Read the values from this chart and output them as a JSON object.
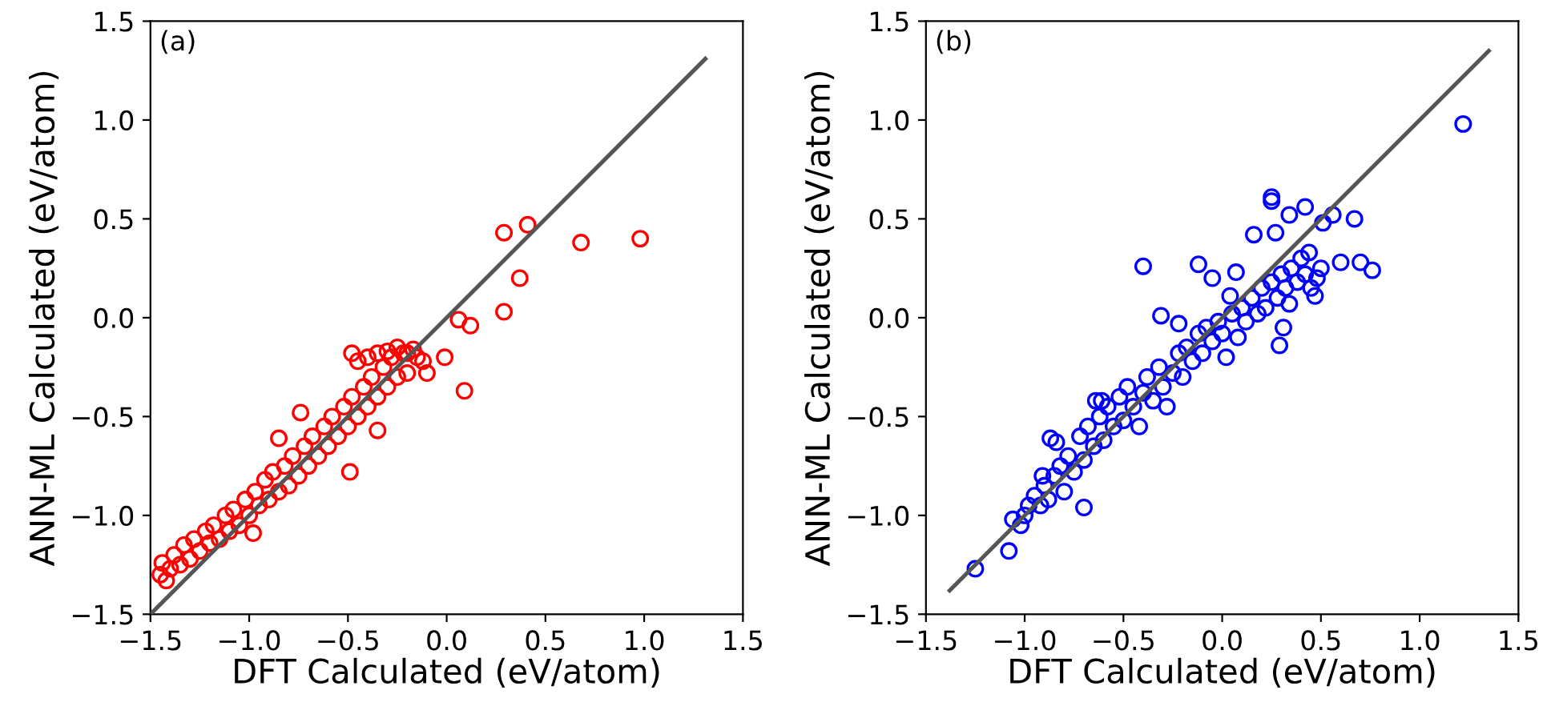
{
  "chart_data": [
    {
      "type": "scatter",
      "xlabel": "DFT Calculated (eV/atom)",
      "ylabel": "ANN-ML Calculated (eV/atom)",
      "xlim": [
        -1.5,
        1.5
      ],
      "ylim": [
        -1.5,
        1.5
      ],
      "xticks": [
        {
          "value": -1.5,
          "label": "−1.5"
        },
        {
          "value": -1.0,
          "label": "−1.0"
        },
        {
          "value": -0.5,
          "label": "−0.5"
        },
        {
          "value": 0.0,
          "label": "0.0"
        },
        {
          "value": 0.5,
          "label": "0.5"
        },
        {
          "value": 1.0,
          "label": "1.0"
        },
        {
          "value": 1.5,
          "label": "1.5"
        }
      ],
      "yticks": [
        {
          "value": -1.5,
          "label": "−1.5"
        },
        {
          "value": -1.0,
          "label": "−1.0"
        },
        {
          "value": -0.5,
          "label": "−0.5"
        },
        {
          "value": 0.0,
          "label": "0.0"
        },
        {
          "value": 0.5,
          "label": "0.5"
        },
        {
          "value": 1.0,
          "label": "1.0"
        },
        {
          "value": 1.5,
          "label": "1.5"
        }
      ],
      "annotations": [
        "(a)"
      ],
      "grid": false,
      "legend": false,
      "series": [
        {
          "marker": "circle",
          "color": "#ff0000",
          "x": [
            -1.45,
            -1.44,
            -1.42,
            -1.4,
            -1.38,
            -1.35,
            -1.33,
            -1.3,
            -1.28,
            -1.25,
            -1.22,
            -1.2,
            -1.18,
            -1.15,
            -1.12,
            -1.1,
            -1.08,
            -1.05,
            -1.02,
            -1.0,
            -0.98,
            -0.97,
            -0.95,
            -0.92,
            -0.9,
            -0.88,
            -0.85,
            -0.85,
            -0.82,
            -0.8,
            -0.78,
            -0.75,
            -0.74,
            -0.72,
            -0.7,
            -0.68,
            -0.65,
            -0.62,
            -0.6,
            -0.58,
            -0.55,
            -0.52,
            -0.5,
            -0.49,
            -0.48,
            -0.45,
            -0.42,
            -0.4,
            -0.38,
            -0.35,
            -0.35,
            -0.32,
            -0.3,
            -0.28,
            -0.25,
            -0.22,
            -0.2,
            -0.17,
            -0.15,
            -0.48,
            -0.45,
            -0.4,
            -0.35,
            -0.3,
            -0.25,
            -0.2,
            -0.12,
            -0.1,
            0.29,
            0.41,
            0.68,
            0.98,
            0.37,
            0.29,
            0.06,
            0.12,
            -0.01,
            0.09
          ],
          "values": [
            -1.3,
            -1.24,
            -1.33,
            -1.27,
            -1.2,
            -1.25,
            -1.15,
            -1.22,
            -1.12,
            -1.18,
            -1.08,
            -1.14,
            -1.05,
            -1.12,
            -1.0,
            -1.08,
            -0.97,
            -1.05,
            -0.92,
            -1.0,
            -1.09,
            -0.88,
            -0.95,
            -0.82,
            -0.92,
            -0.78,
            -0.88,
            -0.61,
            -0.75,
            -0.85,
            -0.7,
            -0.8,
            -0.48,
            -0.65,
            -0.75,
            -0.6,
            -0.7,
            -0.55,
            -0.65,
            -0.5,
            -0.6,
            -0.45,
            -0.55,
            -0.78,
            -0.4,
            -0.5,
            -0.35,
            -0.45,
            -0.3,
            -0.57,
            -0.4,
            -0.25,
            -0.35,
            -0.2,
            -0.3,
            -0.18,
            -0.28,
            -0.16,
            -0.2,
            -0.18,
            -0.22,
            -0.2,
            -0.18,
            -0.17,
            -0.15,
            -0.18,
            -0.22,
            -0.28,
            0.43,
            0.47,
            0.38,
            0.4,
            0.2,
            0.03,
            -0.01,
            -0.04,
            -0.2,
            -0.37
          ]
        },
        {
          "type": "line",
          "marker": "none",
          "color": "#555555",
          "x": [
            -1.5,
            1.31
          ],
          "values": [
            -1.5,
            1.31
          ]
        }
      ]
    },
    {
      "type": "scatter",
      "xlabel": "DFT Calculated (eV/atom)",
      "ylabel": "ANN-ML Calculated (eV/atom)",
      "xlim": [
        -1.5,
        1.5
      ],
      "ylim": [
        -1.5,
        1.5
      ],
      "xticks": [
        {
          "value": -1.5,
          "label": "−1.5"
        },
        {
          "value": -1.0,
          "label": "−1.0"
        },
        {
          "value": -0.5,
          "label": "−0.5"
        },
        {
          "value": 0.0,
          "label": "0.0"
        },
        {
          "value": 0.5,
          "label": "0.5"
        },
        {
          "value": 1.0,
          "label": "1.0"
        },
        {
          "value": 1.5,
          "label": "1.5"
        }
      ],
      "yticks": [
        {
          "value": -1.5,
          "label": "−1.5"
        },
        {
          "value": -1.0,
          "label": "−1.0"
        },
        {
          "value": -0.5,
          "label": "−0.5"
        },
        {
          "value": 0.0,
          "label": "0.0"
        },
        {
          "value": 0.5,
          "label": "0.5"
        },
        {
          "value": 1.0,
          "label": "1.0"
        },
        {
          "value": 1.5,
          "label": "1.5"
        }
      ],
      "annotations": [
        "(b)"
      ],
      "grid": false,
      "legend": false,
      "series": [
        {
          "marker": "circle",
          "color": "#0000ff",
          "x": [
            -1.0,
            -1.02,
            -0.98,
            -0.95,
            -0.92,
            -0.9,
            -0.88,
            -0.85,
            -0.82,
            -0.8,
            -0.78,
            -0.75,
            -0.72,
            -0.7,
            -0.68,
            -0.65,
            -0.62,
            -0.6,
            -0.58,
            -0.55,
            -0.52,
            -0.5,
            -0.48,
            -0.45,
            -0.42,
            -0.4,
            -0.38,
            -0.35,
            -0.32,
            -0.3,
            -0.28,
            -0.25,
            -0.22,
            -0.2,
            -0.18,
            -0.15,
            -0.12,
            -0.1,
            -0.08,
            -0.05,
            -0.02,
            0.0,
            0.02,
            0.05,
            0.08,
            0.1,
            0.12,
            0.15,
            0.18,
            0.2,
            0.22,
            0.25,
            0.28,
            0.3,
            0.32,
            0.35,
            0.38,
            0.4,
            0.42,
            0.45,
            0.48,
            0.5,
            1.22,
            0.25,
            0.25,
            0.42,
            0.34,
            0.56,
            0.67,
            0.16,
            0.27,
            0.51,
            -0.4,
            -0.12,
            0.07,
            -0.05,
            0.04,
            -0.31,
            -0.22,
            0.29,
            0.76,
            0.7,
            0.6,
            0.47,
            0.34,
            0.31,
            0.44,
            -1.25,
            -1.08,
            -1.06,
            -0.87,
            -0.84,
            -0.91,
            -0.7,
            -0.64,
            -0.61
          ],
          "values": [
            -1.0,
            -1.05,
            -0.95,
            -0.9,
            -0.95,
            -0.85,
            -0.92,
            -0.8,
            -0.75,
            -0.88,
            -0.7,
            -0.78,
            -0.6,
            -0.72,
            -0.55,
            -0.65,
            -0.5,
            -0.62,
            -0.45,
            -0.55,
            -0.4,
            -0.52,
            -0.35,
            -0.45,
            -0.55,
            -0.38,
            -0.3,
            -0.42,
            -0.25,
            -0.35,
            -0.45,
            -0.28,
            -0.18,
            -0.3,
            -0.15,
            -0.22,
            -0.08,
            -0.18,
            -0.05,
            -0.12,
            -0.02,
            -0.08,
            -0.2,
            0.02,
            -0.1,
            0.05,
            -0.02,
            0.1,
            0.02,
            0.15,
            0.05,
            0.18,
            0.1,
            0.22,
            0.15,
            0.25,
            0.18,
            0.3,
            0.22,
            0.15,
            0.2,
            0.25,
            0.98,
            0.61,
            0.59,
            0.56,
            0.52,
            0.52,
            0.5,
            0.42,
            0.43,
            0.48,
            0.26,
            0.27,
            0.23,
            0.2,
            0.11,
            0.01,
            -0.03,
            -0.14,
            0.24,
            0.28,
            0.28,
            0.11,
            0.07,
            -0.05,
            0.33,
            -1.27,
            -1.18,
            -1.02,
            -0.61,
            -0.63,
            -0.8,
            -0.96,
            -0.42,
            -0.42
          ]
        },
        {
          "type": "line",
          "marker": "none",
          "color": "#555555",
          "x": [
            -1.38,
            1.35
          ],
          "values": [
            -1.38,
            1.35
          ]
        }
      ]
    }
  ]
}
